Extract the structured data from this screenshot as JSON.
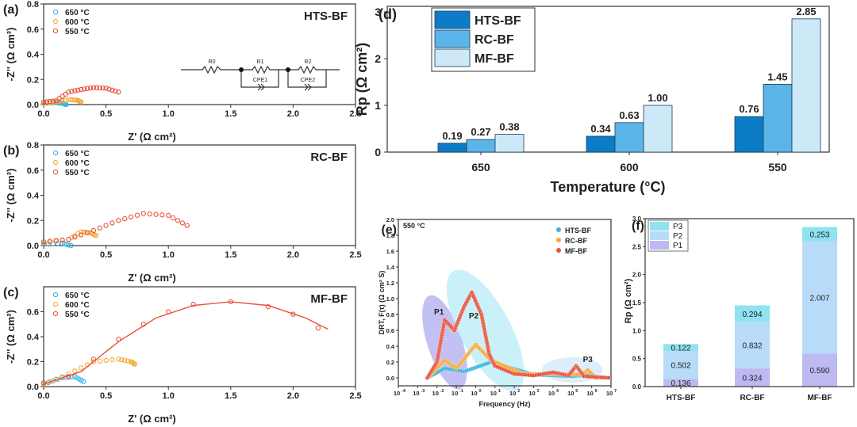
{
  "colors": {
    "t650": "#3bb6e0",
    "t600": "#f4a93a",
    "t550": "#e8523a",
    "hts": "#0d7cc6",
    "rc": "#5cb5e8",
    "mf": "#cde9f7",
    "p1": "#bdb9f2",
    "p2": "#b7dbf8",
    "p3": "#8fe3f1"
  },
  "circuit": {
    "labels": [
      "R0",
      "R1",
      "R2",
      "CPE1",
      "CPE2"
    ]
  },
  "chart_data": [
    {
      "id": "a",
      "panel": "(a)",
      "type": "scatter",
      "title": "HTS-BF",
      "xlabel": "Z' (Ω cm²)",
      "ylabel": "-Z'' (Ω cm²)",
      "xlim": [
        0,
        2.5
      ],
      "ylim": [
        0,
        0.8
      ],
      "xticks": [
        "0.0",
        "0.5",
        "1.0",
        "1.5",
        "2.0",
        "2.5"
      ],
      "yticks": [
        "0.0",
        "0.2",
        "0.4",
        "0.6",
        "0.8"
      ],
      "series": [
        {
          "name": "650 °C",
          "color": "t650",
          "points": [
            [
              0,
              0.01
            ],
            [
              0.1,
              0.015
            ],
            [
              0.15,
              0.01
            ],
            [
              0.18,
              0.0
            ]
          ]
        },
        {
          "name": "600 °C",
          "color": "t600",
          "points": [
            [
              0,
              0.01
            ],
            [
              0.1,
              0.02
            ],
            [
              0.2,
              0.04
            ],
            [
              0.27,
              0.035
            ],
            [
              0.3,
              0.02
            ]
          ]
        },
        {
          "name": "550 °C",
          "color": "t550",
          "points": [
            [
              0,
              0.02
            ],
            [
              0.1,
              0.03
            ],
            [
              0.2,
              0.1
            ],
            [
              0.3,
              0.12
            ],
            [
              0.4,
              0.135
            ],
            [
              0.5,
              0.13
            ],
            [
              0.6,
              0.1
            ]
          ]
        }
      ]
    },
    {
      "id": "b",
      "panel": "(b)",
      "type": "scatter",
      "title": "RC-BF",
      "xlabel": "Z' (Ω cm²)",
      "ylabel": "-Z'' (Ω cm²)",
      "xlim": [
        0,
        2.5
      ],
      "ylim": [
        0,
        0.8
      ],
      "xticks": [
        "0.0",
        "0.5",
        "1.0",
        "1.5",
        "2.0",
        "2.5"
      ],
      "yticks": [
        "0.0",
        "0.2",
        "0.4",
        "0.6",
        "0.8"
      ],
      "series": [
        {
          "name": "650 °C",
          "color": "t650",
          "points": [
            [
              0,
              0.01
            ],
            [
              0.15,
              0.02
            ],
            [
              0.22,
              0.0
            ]
          ]
        },
        {
          "name": "600 °C",
          "color": "t600",
          "points": [
            [
              0,
              0.02
            ],
            [
              0.2,
              0.05
            ],
            [
              0.3,
              0.11
            ],
            [
              0.38,
              0.1
            ],
            [
              0.42,
              0.08
            ]
          ]
        },
        {
          "name": "550 °C",
          "color": "t550",
          "points": [
            [
              0,
              0.03
            ],
            [
              0.2,
              0.05
            ],
            [
              0.4,
              0.12
            ],
            [
              0.6,
              0.2
            ],
            [
              0.8,
              0.255
            ],
            [
              1.0,
              0.24
            ],
            [
              1.15,
              0.16
            ]
          ]
        }
      ]
    },
    {
      "id": "c",
      "panel": "(c)",
      "type": "scatter",
      "title": "MF-BF",
      "xlabel": "Z' (Ω cm²)",
      "ylabel": "-Z'' (Ω cm²)",
      "xlim": [
        0,
        2.5
      ],
      "ylim": [
        0,
        0.8
      ],
      "xticks": [
        "0.0",
        "0.5",
        "1.0",
        "1.5",
        "2.0",
        "2.5"
      ],
      "yticks": [
        "0.0",
        "0.2",
        "0.4",
        "0.6"
      ],
      "series": [
        {
          "name": "650 °C",
          "color": "t650",
          "points": [
            [
              0,
              0.02
            ],
            [
              0.15,
              0.07
            ],
            [
              0.25,
              0.08
            ],
            [
              0.32,
              0.04
            ]
          ]
        },
        {
          "name": "600 °C",
          "color": "t600",
          "points": [
            [
              0,
              0.02
            ],
            [
              0.2,
              0.1
            ],
            [
              0.4,
              0.2
            ],
            [
              0.6,
              0.22
            ],
            [
              0.7,
              0.2
            ],
            [
              0.73,
              0.18
            ]
          ]
        },
        {
          "name": "550 °C",
          "color": "t550",
          "points": [
            [
              0,
              0.03
            ],
            [
              0.2,
              0.08
            ],
            [
              0.4,
              0.22
            ],
            [
              0.6,
              0.38
            ],
            [
              0.8,
              0.5
            ],
            [
              1.0,
              0.6
            ],
            [
              1.2,
              0.66
            ],
            [
              1.5,
              0.68
            ],
            [
              1.8,
              0.64
            ],
            [
              2.0,
              0.58
            ],
            [
              2.2,
              0.47
            ]
          ],
          "fit": [
            [
              0,
              0.02
            ],
            [
              0.3,
              0.12
            ],
            [
              0.6,
              0.36
            ],
            [
              0.9,
              0.55
            ],
            [
              1.2,
              0.65
            ],
            [
              1.5,
              0.68
            ],
            [
              1.8,
              0.65
            ],
            [
              2.1,
              0.55
            ],
            [
              2.28,
              0.46
            ]
          ]
        }
      ]
    },
    {
      "id": "d",
      "panel": "(d)",
      "type": "bar",
      "xlabel": "Temperature (°C)",
      "ylabel": "Rp (Ω cm²)",
      "ylim": [
        0,
        3
      ],
      "yticks": [
        "0",
        "1",
        "2",
        "3"
      ],
      "categories": [
        "650",
        "600",
        "550"
      ],
      "series": [
        {
          "name": "HTS-BF",
          "color": "hts",
          "values": [
            0.19,
            0.34,
            0.76
          ],
          "labels": [
            "0.19",
            "0.34",
            "0.76"
          ]
        },
        {
          "name": "RC-BF",
          "color": "rc",
          "values": [
            0.27,
            0.63,
            1.45
          ],
          "labels": [
            "0.27",
            "0.63",
            "1.45"
          ]
        },
        {
          "name": "MF-BF",
          "color": "mf",
          "values": [
            0.38,
            1.0,
            2.85
          ],
          "labels": [
            "0.38",
            "1.00",
            "2.85"
          ]
        }
      ],
      "legend": "top-left"
    },
    {
      "id": "e",
      "panel": "(e)",
      "type": "scatter",
      "annotation": "550 °C",
      "xlabel": "Frequency (Hz)",
      "ylabel": "DRT, F(τ) (Ω cm² S)",
      "xlim_log10": [
        -4,
        7
      ],
      "ylim": [
        -0.1,
        2.0
      ],
      "yticks": [
        "0.0",
        "0.2",
        "0.4",
        "0.6",
        "0.8",
        "1.0",
        "1.2",
        "1.4",
        "1.6",
        "1.8",
        "2.0"
      ],
      "xtick_exponents": [
        "-4",
        "-3",
        "-2",
        "-1",
        "0",
        "1",
        "2",
        "3",
        "4",
        "5",
        "6",
        "7"
      ],
      "regions": [
        "P1",
        "P2",
        "P3"
      ],
      "series": [
        {
          "name": "HTS-BF",
          "color": "t650",
          "points": [
            [
              -2.5,
              0
            ],
            [
              -1.6,
              0.12
            ],
            [
              -0.6,
              0.08
            ],
            [
              0.8,
              0.2
            ],
            [
              1.5,
              0.15
            ],
            [
              3,
              0.04
            ],
            [
              5,
              0.02
            ],
            [
              6,
              0.04
            ],
            [
              6.3,
              0
            ],
            [
              7,
              0
            ]
          ]
        },
        {
          "name": "RC-BF",
          "color": "t600",
          "points": [
            [
              -2.5,
              0
            ],
            [
              -1.6,
              0.22
            ],
            [
              -1,
              0.12
            ],
            [
              0,
              0.42
            ],
            [
              0.8,
              0.22
            ],
            [
              1.5,
              0.15
            ],
            [
              2.5,
              0.05
            ],
            [
              4,
              0.05
            ],
            [
              5.5,
              0.04
            ],
            [
              5.8,
              0.1
            ],
            [
              6.2,
              0
            ],
            [
              7,
              0
            ]
          ]
        },
        {
          "name": "MF-BF",
          "color": "t550",
          "points": [
            [
              -2.5,
              0
            ],
            [
              -2,
              0.2
            ],
            [
              -1.6,
              0.73
            ],
            [
              -1.1,
              0.6
            ],
            [
              -0.6,
              0.9
            ],
            [
              -0.2,
              1.08
            ],
            [
              0.3,
              0.8
            ],
            [
              0.7,
              0.3
            ],
            [
              1,
              0.15
            ],
            [
              2,
              0.05
            ],
            [
              3,
              0.03
            ],
            [
              4,
              0.07
            ],
            [
              4.8,
              0.03
            ],
            [
              5.2,
              0.15
            ],
            [
              5.6,
              0.02
            ],
            [
              7,
              0
            ]
          ]
        }
      ],
      "legend": "top-right"
    },
    {
      "id": "f",
      "panel": "(f)",
      "type": "bar",
      "stacked": true,
      "ylabel": "Rp (Ω cm²)",
      "ylim": [
        0,
        3
      ],
      "yticks": [
        "0.0",
        "0.5",
        "1.0",
        "1.5",
        "2.0",
        "2.5",
        "3.0"
      ],
      "categories": [
        "HTS-BF",
        "RC-BF",
        "MF-BF"
      ],
      "series": [
        {
          "name": "P1",
          "color": "p1",
          "values": [
            0.136,
            0.324,
            0.59
          ],
          "labels": [
            "0.136",
            "0.324",
            "0.590"
          ]
        },
        {
          "name": "P2",
          "color": "p2",
          "values": [
            0.502,
            0.832,
            2.007
          ],
          "labels": [
            "0.502",
            "0.832",
            "2.007"
          ]
        },
        {
          "name": "P3",
          "color": "p3",
          "values": [
            0.122,
            0.294,
            0.253
          ],
          "labels": [
            "0.122",
            "0.294",
            "0.253"
          ]
        }
      ],
      "legend": "top-left"
    }
  ]
}
